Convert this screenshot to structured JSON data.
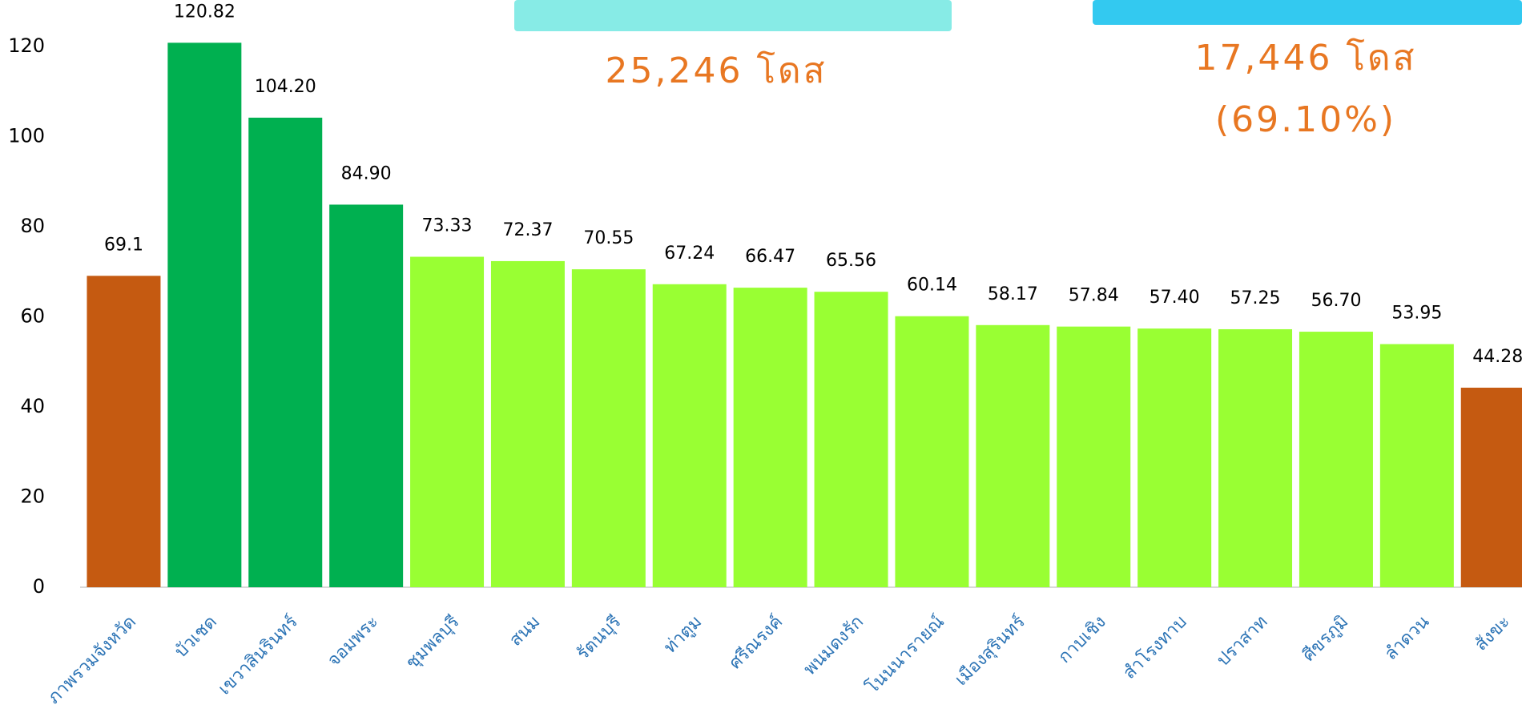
{
  "chart_data": {
    "type": "bar",
    "categories": [
      "ภาพรวมจังหวัด",
      "บัวเชด",
      "เขวาสินรินทร์",
      "จอมพระ",
      "ชุมพลบุรี",
      "สนม",
      "รัตนบุรี",
      "ท่าตูม",
      "ศรีณรงค์",
      "พนมดงรัก",
      "โนนนารายณ์",
      "เมืองสุรินทร์",
      "กาบเชิง",
      "สำโรงทาบ",
      "ปราสาท",
      "ศีขรภูมิ",
      "ลำดวน",
      "สังขะ"
    ],
    "values": [
      69.1,
      120.82,
      104.2,
      84.9,
      73.33,
      72.37,
      70.55,
      67.24,
      66.47,
      65.56,
      60.14,
      58.17,
      57.84,
      57.4,
      57.25,
      56.7,
      53.95,
      44.28
    ],
    "value_labels": [
      "69.1",
      "120.82",
      "104.20",
      "84.90",
      "73.33",
      "72.37",
      "70.55",
      "67.24",
      "66.47",
      "65.56",
      "60.14",
      "58.17",
      "57.84",
      "57.40",
      "57.25",
      "56.70",
      "53.95",
      "44.28"
    ],
    "colors": [
      "#c55a11",
      "#00b050",
      "#00b050",
      "#00b050",
      "#99ff33",
      "#99ff33",
      "#99ff33",
      "#99ff33",
      "#99ff33",
      "#99ff33",
      "#99ff33",
      "#99ff33",
      "#99ff33",
      "#99ff33",
      "#99ff33",
      "#99ff33",
      "#99ff33",
      "#c55a11"
    ],
    "ylim": [
      0,
      120
    ],
    "yticks": [
      0,
      20,
      40,
      60,
      80,
      100,
      120
    ],
    "annotations": [
      "25,246 โดส",
      "17,446 โดส",
      "(69.10%)"
    ]
  }
}
